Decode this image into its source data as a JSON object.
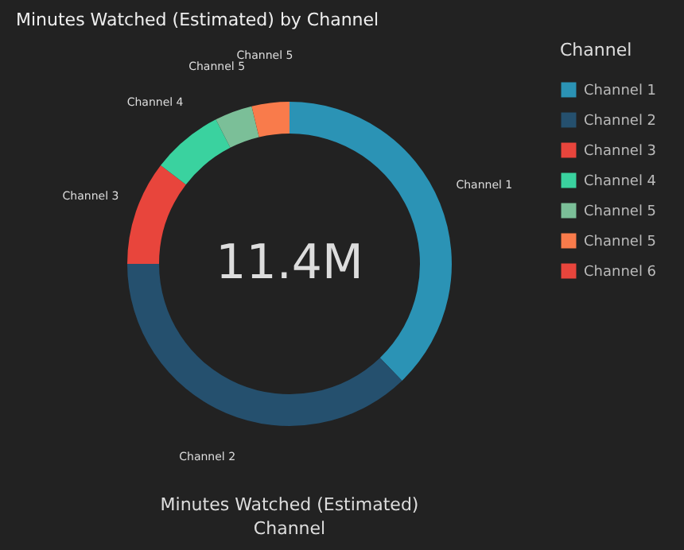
{
  "chart_data": {
    "type": "donut",
    "title": "Minutes Watched (Estimated) by Channel",
    "legend_title": "Channel",
    "legend": "right",
    "categories": [
      "Channel 1",
      "Channel 2",
      "Channel 3",
      "Channel 4",
      "Channel 5",
      "Channel 5",
      "Channel 6"
    ],
    "values": [
      37.8,
      37.2,
      10.4,
      7.1,
      3.75,
      3.75,
      0
    ],
    "colors": [
      "#2b93b5",
      "#25506e",
      "#e8453c",
      "#3ad29f",
      "#7bbf98",
      "#f97b4b",
      "#e8453c"
    ],
    "annotations": [
      "11.4M",
      "Minutes Watched (Estimated)",
      "Channel"
    ]
  }
}
